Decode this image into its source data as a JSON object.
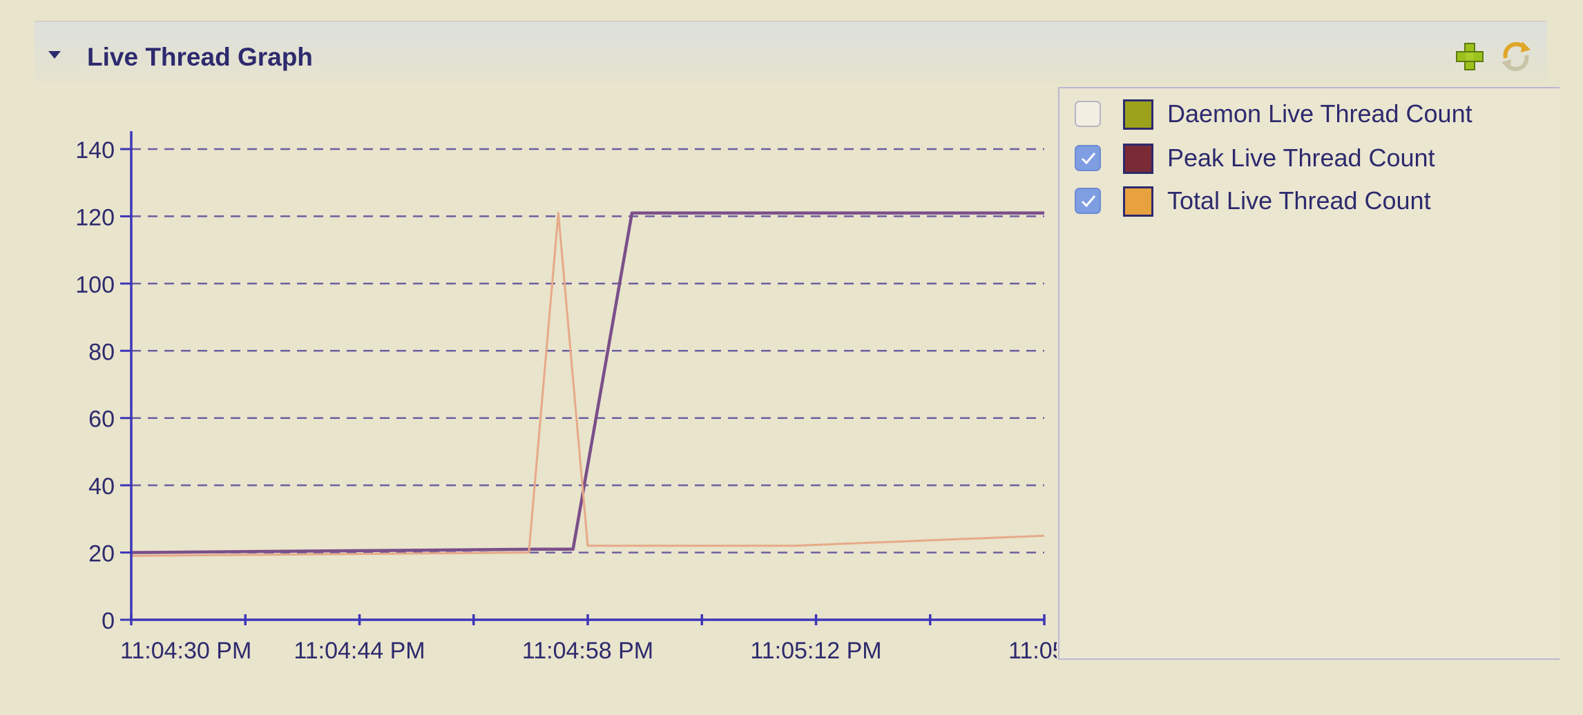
{
  "panel": {
    "title": "Live Thread Graph",
    "icons": [
      "collapse-triangle-icon",
      "add-icon",
      "refresh-icon"
    ]
  },
  "colors": {
    "axis": "#3d36b8",
    "grid": "#6a5fa0",
    "daemon": "#9ca21c",
    "peak": "#7a2a35",
    "peak_line": "#7b4f8a",
    "total": "#e7a23f",
    "total_line": "#e6aa88"
  },
  "legend": [
    {
      "label": "Daemon Live Thread Count",
      "checked": false,
      "color": "#9ca21c"
    },
    {
      "label": "Peak Live Thread Count",
      "checked": true,
      "color": "#7a2a35"
    },
    {
      "label": "Total Live Thread Count",
      "checked": true,
      "color": "#e7a23f"
    }
  ],
  "chart_data": {
    "type": "line",
    "ylim": [
      0,
      140
    ],
    "yticks": [
      0,
      20,
      40,
      60,
      80,
      100,
      120,
      140
    ],
    "xticks": [
      "11:04:30 PM",
      "11:04:44 PM",
      "11:04:58 PM",
      "11:05:12 PM",
      "11:05:"
    ],
    "grid": true,
    "legend_position": "right",
    "series": [
      {
        "name": "Peak Live Thread Count",
        "points": [
          [
            0,
            20
          ],
          [
            28,
            21
          ],
          [
            30,
            21
          ],
          [
            34,
            121
          ],
          [
            56,
            121
          ],
          [
            62,
            121
          ]
        ]
      },
      {
        "name": "Total Live Thread Count",
        "points": [
          [
            0,
            19
          ],
          [
            27,
            20
          ],
          [
            29,
            121
          ],
          [
            31,
            22
          ],
          [
            45,
            22
          ],
          [
            62,
            25
          ]
        ]
      }
    ]
  }
}
